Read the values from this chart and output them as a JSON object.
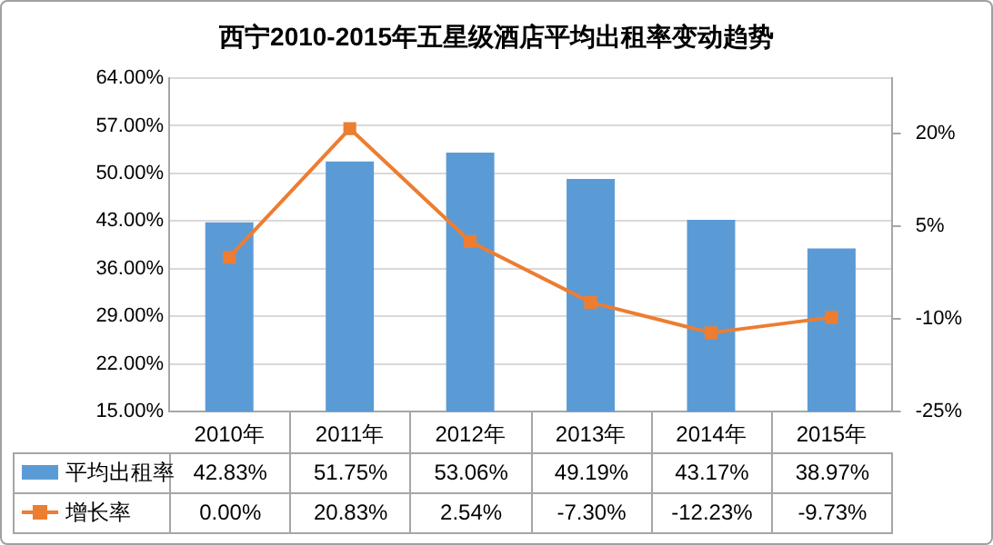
{
  "chart_data": {
    "type": "bar",
    "title": "西宁2010-2015年五星级酒店平均出租率变动趋势",
    "categories": [
      "2010年",
      "2011年",
      "2012年",
      "2013年",
      "2014年",
      "2015年"
    ],
    "series": [
      {
        "name": "平均出租率",
        "color": "#5b9bd5",
        "values": [
          42.83,
          51.75,
          53.06,
          49.19,
          43.17,
          38.97
        ],
        "value_labels": [
          "42.83%",
          "51.75%",
          "53.06%",
          "49.19%",
          "43.17%",
          "38.97%"
        ]
      },
      {
        "name": "增长率",
        "type": "line",
        "axis": "y2",
        "color": "#ed7d31",
        "values": [
          0.0,
          20.83,
          2.54,
          -7.3,
          -12.23,
          -9.73
        ],
        "value_labels": [
          "0.00%",
          "20.83%",
          "2.54%",
          "-7.30%",
          "-12.23%",
          "-9.73%"
        ]
      }
    ],
    "ylim": [
      15,
      64
    ],
    "yticks": [
      {
        "value": 15,
        "label": "15.00%"
      },
      {
        "value": 22,
        "label": "22.00%"
      },
      {
        "value": 29,
        "label": "29.00%"
      },
      {
        "value": 36,
        "label": "36.00%"
      },
      {
        "value": 43,
        "label": "43.00%"
      },
      {
        "value": 50,
        "label": "50.00%"
      },
      {
        "value": 57,
        "label": "57.00%"
      },
      {
        "value": 64,
        "label": "64.00%"
      }
    ],
    "y2lim": [
      -25,
      29
    ],
    "y2ticks": [
      {
        "value": -25,
        "label": "-25%"
      },
      {
        "value": -10,
        "label": "-10%"
      },
      {
        "value": 5,
        "label": "5%"
      },
      {
        "value": 20,
        "label": "20%"
      }
    ],
    "grid": "y",
    "legend": "bottom",
    "marker": "square",
    "line_style": "solid"
  }
}
